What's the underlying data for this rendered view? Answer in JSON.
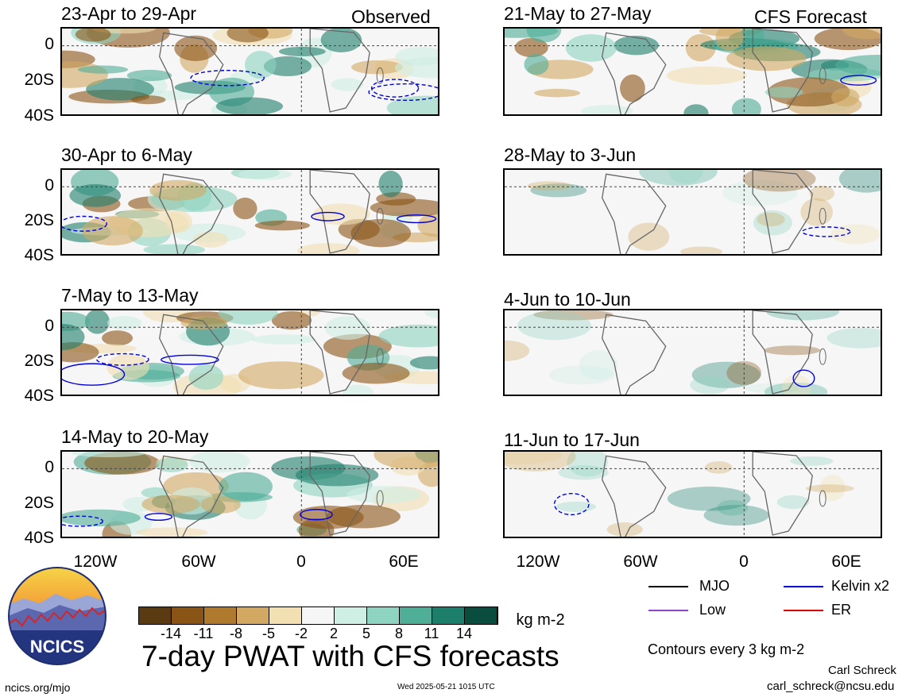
{
  "observed_label": "Observed",
  "forecast_label": "CFS Forecast",
  "panels_left": [
    {
      "title": "23-Apr to 29-Apr"
    },
    {
      "title": "30-Apr to 6-May"
    },
    {
      "title": "7-May to 13-May"
    },
    {
      "title": "14-May to 20-May"
    }
  ],
  "panels_right": [
    {
      "title": "21-May to 27-May"
    },
    {
      "title": "28-May to 3-Jun"
    },
    {
      "title": "4-Jun to 10-Jun"
    },
    {
      "title": "11-Jun to 17-Jun"
    }
  ],
  "y_ticks": [
    "0",
    "20S",
    "40S"
  ],
  "x_ticks": [
    "120W",
    "60W",
    "0",
    "60E"
  ],
  "legend": {
    "mjo": "MJO",
    "kelvin": "Kelvin x2",
    "low": "Low",
    "er": "ER",
    "colors": {
      "mjo": "#000000",
      "kelvin": "#0000dd",
      "low": "#8844cc",
      "er": "#dd0000"
    }
  },
  "colorbar": {
    "ticks": [
      "-14",
      "-11",
      "-8",
      "-5",
      "-2",
      "2",
      "5",
      "8",
      "11",
      "14"
    ],
    "unit": "kg m-2",
    "colors": [
      "#5a3a10",
      "#8a5416",
      "#b07a2e",
      "#d2a862",
      "#f2e0b2",
      "#f6f6f6",
      "#cfeee4",
      "#8ed4c0",
      "#4fae98",
      "#1e7e6c",
      "#0a4c3e"
    ]
  },
  "main_title": "7-day PWAT with CFS forecasts",
  "contours_note": "Contours every 3 kg m-2",
  "author": "Carl Schreck",
  "email": "carl_schreck@ncsu.edu",
  "site": "ncics.org/mjo",
  "timestamp": "Wed 2025-05-21 1015 UTC",
  "logo_text": "NCICS"
}
